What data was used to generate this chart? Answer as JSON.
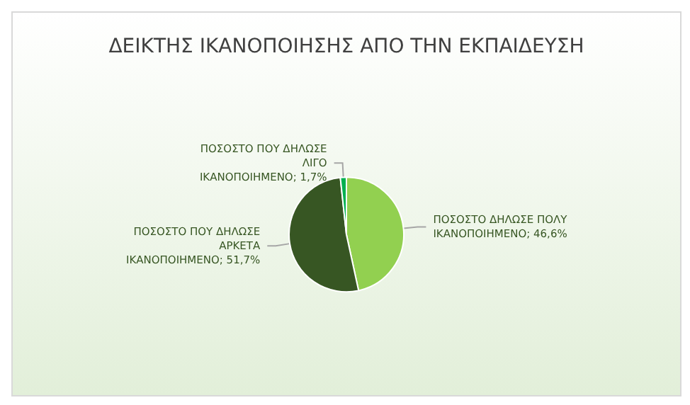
{
  "chart_data": {
    "type": "pie",
    "title": "ΔΕΙΚΤΗΣ ΙΚΑΝΟΠΟΙΗΣΗΣ ΑΠΟ ΤΗΝ ΕΚΠΑΙΔΕΥΣΗ",
    "categories": [
      "ΠΟΣΟΣΤΟ ΔΗΛΩΣΕ ΠΟΛΥ ΙΚΑΝΟΠΟΙΗΜΕΝΟ",
      "ΠΟΣΟΣΤΟ ΠΟΥ ΔΗΛΩΣΕ ΑΡΚΕΤΑ ΙΚΑΝΟΠΟΙΗΜΕΝΟ",
      "ΠΟΣΟΣΤΟ ΠΟΥ ΔΗΛΩΣΕ ΛΙΓΟ ΙΚΑΝΟΠΟΙΗΜΕΝΟ"
    ],
    "values": [
      46.6,
      51.7,
      1.7
    ],
    "value_labels": [
      "46,6%",
      "51,7%",
      "1,7%"
    ],
    "colors": [
      "#92d050",
      "#375623",
      "#00b050"
    ]
  }
}
